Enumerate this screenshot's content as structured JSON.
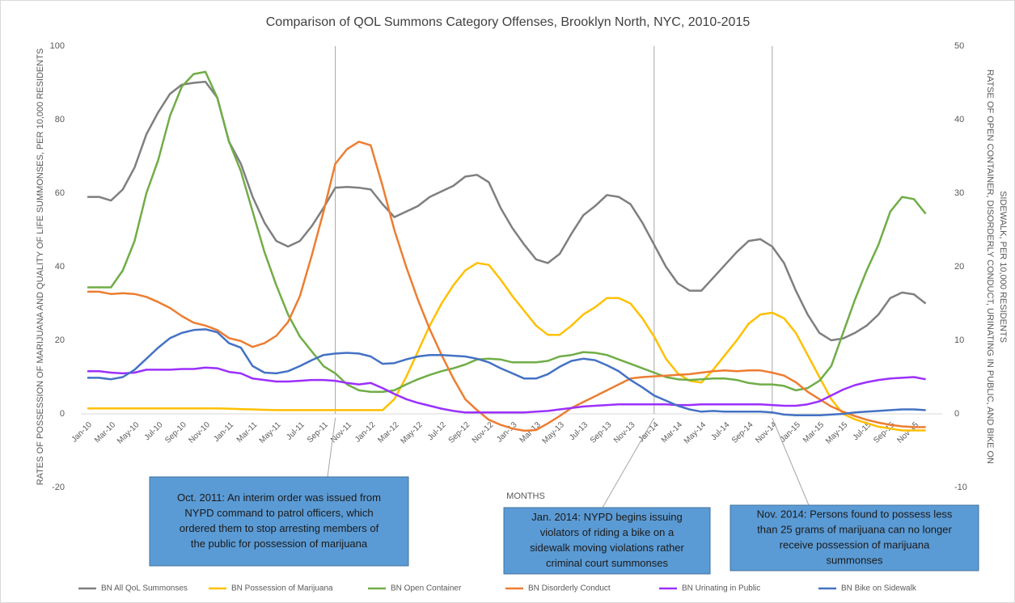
{
  "chart_data": {
    "type": "line",
    "title": "Comparison of QOL Summons Category Offenses, Brooklyn North, NYC, 2010-2015",
    "xlabel": "MONTHS",
    "ylabel": "RATES OF POSSESSION OF MARIJUANA AND QUALITY OF LIFE SUMMONSES,  PER 10,000 RESIDENTS",
    "y2label": [
      "RATSE OF OPEN CONTAINER, DISORDERLY CONDUCT, URINATING IN PUBLIC, AND BIKE ON",
      "SIDEWALK, PER 10,000 RESIDENTS"
    ],
    "categories": [
      "Jan-10",
      null,
      "Mar-10",
      null,
      "May-10",
      null,
      "Jul-10",
      null,
      "Sep-10",
      null,
      "Nov-10",
      null,
      "Jan-11",
      null,
      "Mar-11",
      null,
      "May-11",
      null,
      "Jul-11",
      null,
      "Sep-11",
      null,
      "Nov-11",
      null,
      "Jan-12",
      null,
      "Mar-12",
      null,
      "May-12",
      null,
      "Jul-12",
      null,
      "Sep-12",
      null,
      "Nov-12",
      null,
      "Jan-13",
      null,
      "Mar-13",
      null,
      "May-13",
      null,
      "Jul-13",
      null,
      "Sep-13",
      null,
      "Nov-13",
      null,
      "Jan-14",
      null,
      "Mar-14",
      null,
      "May-14",
      null,
      "Jul-14",
      null,
      "Sep-14",
      null,
      "Nov-14",
      null,
      "Jan-15",
      null,
      "Mar-15",
      null,
      "May-15",
      null,
      "Jul-15",
      null,
      "Sep-15",
      null,
      "Nov-15",
      null
    ],
    "ylim": [
      -20,
      100
    ],
    "yticks": [
      -20,
      0,
      20,
      40,
      60,
      80,
      100
    ],
    "y2lim": [
      -10,
      50
    ],
    "y2ticks": [
      -10,
      0,
      10,
      20,
      30,
      40,
      50
    ],
    "grid": false,
    "legend": "bottom",
    "series": [
      {
        "name": "BN All QoL Summonses",
        "color": "#7f7f7f",
        "values": [
          59,
          59,
          58,
          61,
          67,
          76,
          82,
          87,
          89.5,
          90,
          90.3,
          86,
          74,
          68,
          59,
          52,
          47,
          45.5,
          47,
          51,
          56,
          61.5,
          61.7,
          61.5,
          61,
          57,
          53.5,
          55,
          56.5,
          59,
          60.5,
          62,
          64.5,
          65,
          63,
          56,
          50.5,
          46,
          42,
          41,
          43.5,
          49,
          54,
          56.5,
          59.5,
          59,
          57,
          52,
          46,
          40,
          35.5,
          33.5,
          33.5,
          37,
          40.5,
          44,
          47,
          47.5,
          45.5,
          41,
          33.5,
          27,
          22,
          20,
          20.5,
          22,
          24,
          27,
          31.5,
          33,
          32.5,
          30
        ]
      },
      {
        "name": "BN Possession of Marijuana",
        "color": "#ffc000",
        "values": [
          1.5,
          1.5,
          1.5,
          1.5,
          1.5,
          1.5,
          1.5,
          1.5,
          1.5,
          1.5,
          1.5,
          1.5,
          1.4,
          1.3,
          1.2,
          1.1,
          1,
          1,
          1,
          1,
          1,
          1,
          1,
          1,
          1,
          1,
          4,
          10,
          17,
          24,
          30,
          35,
          39,
          41,
          40.5,
          36.5,
          32,
          28,
          24,
          21.5,
          21.5,
          24,
          27,
          29,
          31.5,
          31.5,
          30,
          26,
          21,
          15,
          11,
          9,
          8.5,
          12,
          16,
          20,
          24.5,
          27,
          27.5,
          26,
          22,
          16,
          10,
          4,
          0,
          -1.5,
          -2.5,
          -3.5,
          -4,
          -4.5,
          -4.5,
          -4.5
        ]
      },
      {
        "name": "BN Open Container",
        "color": "#70ad47",
        "axis": "y2",
        "values": [
          17.2,
          17.2,
          17.2,
          19.5,
          23.5,
          30,
          34.5,
          40.5,
          44.5,
          46.2,
          46.5,
          43,
          37,
          33,
          27.5,
          22,
          17.5,
          13.5,
          10.5,
          8.5,
          6.5,
          5.5,
          4,
          3.2,
          3,
          3,
          3.2,
          4,
          4.7,
          5.3,
          5.8,
          6.2,
          6.7,
          7.4,
          7.5,
          7.4,
          7,
          7,
          7,
          7.2,
          7.8,
          8,
          8.4,
          8.3,
          8,
          7.4,
          6.8,
          6.2,
          5.6,
          5,
          4.7,
          4.6,
          4.7,
          4.8,
          4.8,
          4.6,
          4.2,
          4,
          4,
          3.8,
          3.2,
          3.5,
          4.5,
          6.5,
          11,
          15.5,
          19.5,
          23,
          27.5,
          29.5,
          29.2,
          27.2
        ]
      },
      {
        "name": "BN Disorderly Conduct",
        "color": "#ed7d31",
        "axis": "y2",
        "values": [
          16.6,
          16.6,
          16.3,
          16.4,
          16.3,
          15.9,
          15.2,
          14.4,
          13.3,
          12.4,
          12,
          11.4,
          10.3,
          9.9,
          9.1,
          9.6,
          10.6,
          12.5,
          16,
          21.5,
          27.5,
          34,
          36,
          37,
          36.5,
          31,
          25,
          20,
          15.5,
          11.5,
          8,
          4.8,
          2,
          0.5,
          -0.8,
          -1.5,
          -2,
          -2.3,
          -2.2,
          -1.3,
          -0.3,
          0.8,
          1.6,
          2.4,
          3.2,
          4,
          4.8,
          5,
          5.1,
          5.2,
          5.3,
          5.4,
          5.6,
          5.8,
          5.9,
          5.8,
          5.9,
          5.9,
          5.6,
          5.2,
          4.3,
          3,
          2,
          1,
          0.3,
          -0.3,
          -0.8,
          -1.2,
          -1.5,
          -1.7,
          -1.8,
          -1.8
        ]
      },
      {
        "name": "BN Urinating in Public",
        "color": "#9b30ff",
        "axis": "y2",
        "values": [
          5.8,
          5.8,
          5.6,
          5.5,
          5.6,
          6,
          6,
          6,
          6.1,
          6.1,
          6.3,
          6.2,
          5.7,
          5.5,
          4.8,
          4.6,
          4.4,
          4.4,
          4.5,
          4.6,
          4.6,
          4.5,
          4.2,
          4,
          4.2,
          3.5,
          2.7,
          2,
          1.5,
          1.1,
          0.7,
          0.4,
          0.2,
          0.2,
          0.2,
          0.2,
          0.2,
          0.2,
          0.3,
          0.4,
          0.6,
          0.8,
          1,
          1.1,
          1.2,
          1.3,
          1.3,
          1.3,
          1.3,
          1.3,
          1.2,
          1.2,
          1.3,
          1.3,
          1.3,
          1.3,
          1.3,
          1.3,
          1.2,
          1.1,
          1.1,
          1.3,
          1.7,
          2.5,
          3.3,
          3.9,
          4.3,
          4.6,
          4.8,
          4.9,
          5,
          4.7
        ]
      },
      {
        "name": "BN Bike on Sidewalk",
        "color": "#4472c4",
        "axis": "y2",
        "values": [
          4.9,
          4.9,
          4.7,
          5,
          6,
          7.5,
          9,
          10.3,
          11,
          11.4,
          11.5,
          11.1,
          9.6,
          9,
          6.5,
          5.6,
          5.5,
          5.8,
          6.5,
          7.3,
          8,
          8.2,
          8.3,
          8.2,
          7.8,
          6.8,
          6.9,
          7.4,
          7.8,
          8,
          8,
          7.9,
          7.8,
          7.5,
          7,
          6.2,
          5.5,
          4.8,
          4.8,
          5.4,
          6.4,
          7.2,
          7.5,
          7.3,
          6.6,
          5.8,
          4.6,
          3.6,
          2.5,
          1.8,
          1.1,
          0.6,
          0.3,
          0.4,
          0.3,
          0.3,
          0.3,
          0.3,
          0.2,
          -0.1,
          -0.2,
          -0.2,
          -0.2,
          -0.1,
          0,
          0.2,
          0.3,
          0.4,
          0.5,
          0.6,
          0.6,
          0.5
        ]
      }
    ],
    "annotations": [
      [
        "Oct. 2011:  An interim order was issued from",
        "NYPD command to patrol officers, which",
        "ordered them to stop arresting members of",
        "the public for possession of marijuana"
      ],
      [
        "Jan. 2014:  NYPD begins issuing",
        "violators of riding a bike on a",
        "sidewalk moving violations rather",
        "criminal court summonses"
      ],
      [
        "Nov. 2014:  Persons found to possess less",
        "than 25 grams of marijuana can no longer",
        "receive possession of marijuana",
        "summonses"
      ]
    ]
  }
}
